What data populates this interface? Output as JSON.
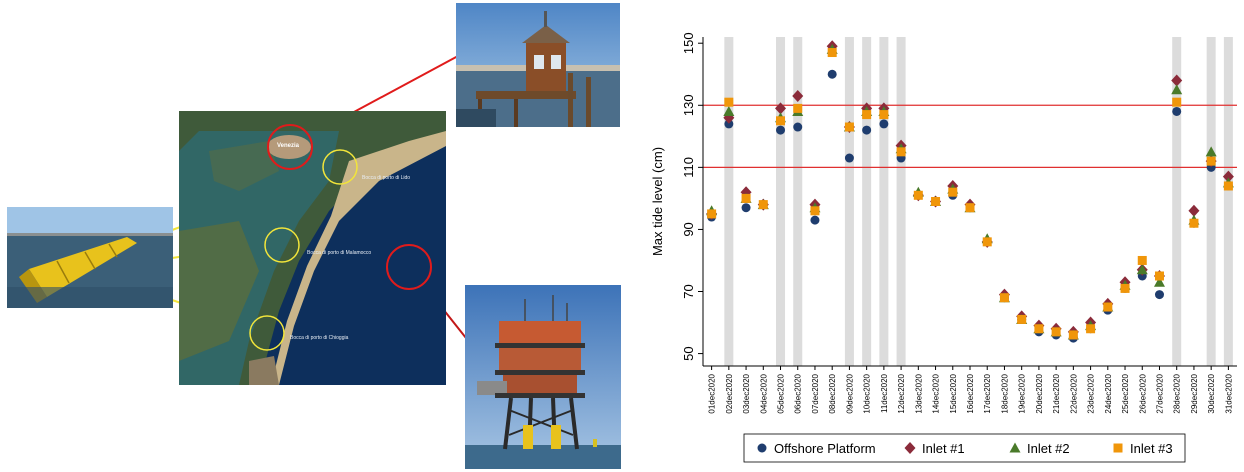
{
  "figure": {
    "map_labels": {
      "city": "Venezia",
      "lido": "Bocca di porto di Lido",
      "malamocco": "Bocca di porto di Malamocco",
      "chioggia": "Bocca di porto di Chioggia"
    },
    "colors": {
      "highlight_yellow": "#f2e53a",
      "highlight_red": "#e01b1b",
      "sea": "#0d2f5c",
      "barrier_yellow": "#e8c21c"
    }
  },
  "chart_data": {
    "type": "scatter",
    "title": "",
    "xlabel": "",
    "ylabel": "Max tide level (cm)",
    "ylim": [
      46,
      152
    ],
    "yticks": [
      50,
      70,
      90,
      110,
      130,
      150
    ],
    "grid": false,
    "legend_position": "bottom",
    "reference_lines": [
      110,
      130
    ],
    "reference_line_color": "#e03030",
    "x": [
      "01dec2020",
      "02dec2020",
      "03dec2020",
      "04dec2020",
      "05dec2020",
      "06dec2020",
      "07dec2020",
      "08dec2020",
      "09dec2020",
      "10dec2020",
      "11dec2020",
      "12dec2020",
      "13dec2020",
      "14dec2020",
      "15dec2020",
      "16dec2020",
      "17dec2020",
      "18dec2020",
      "19dec2020",
      "20dec2020",
      "21dec2020",
      "22dec2020",
      "23dec2020",
      "24dec2020",
      "25dec2020",
      "26dec2020",
      "27dec2020",
      "28dec2020",
      "29dec2020",
      "30dec2020",
      "31dec2020"
    ],
    "shaded_days": [
      "02dec2020",
      "05dec2020",
      "06dec2020",
      "09dec2020",
      "10dec2020",
      "11dec2020",
      "12dec2020",
      "28dec2020",
      "30dec2020",
      "31dec2020"
    ],
    "series": [
      {
        "name": "Offshore Platform",
        "marker": "circle",
        "color": "#1f3d6e",
        "values": [
          94,
          124,
          97,
          98,
          122,
          123,
          93,
          140,
          113,
          122,
          124,
          113,
          101,
          99,
          101,
          97,
          86,
          68,
          61,
          57,
          56,
          55,
          58,
          64,
          71,
          75,
          69,
          128,
          92,
          110,
          104
        ]
      },
      {
        "name": "Inlet #1",
        "marker": "diamond",
        "color": "#8b2b3a",
        "values": [
          95,
          126,
          102,
          98,
          129,
          133,
          98,
          149,
          123,
          129,
          129,
          117,
          101,
          99,
          104,
          98,
          86,
          69,
          62,
          59,
          58,
          57,
          60,
          66,
          73,
          77,
          75,
          138,
          96,
          112,
          107
        ]
      },
      {
        "name": "Inlet #2",
        "marker": "triangle",
        "color": "#4a7a2a",
        "values": [
          96,
          128,
          100,
          98,
          126,
          128,
          97,
          148,
          123,
          128,
          128,
          116,
          102,
          99,
          103,
          97,
          87,
          68,
          61,
          58,
          57,
          56,
          59,
          65,
          72,
          77,
          73,
          135,
          93,
          115,
          105
        ]
      },
      {
        "name": "Inlet #3",
        "marker": "square",
        "color": "#f0960a",
        "values": [
          95,
          131,
          100,
          98,
          125,
          129,
          96,
          147,
          123,
          127,
          127,
          115,
          101,
          99,
          102,
          97,
          86,
          68,
          61,
          58,
          57,
          56,
          58,
          65,
          71,
          80,
          75,
          131,
          92,
          112,
          104
        ]
      }
    ]
  }
}
